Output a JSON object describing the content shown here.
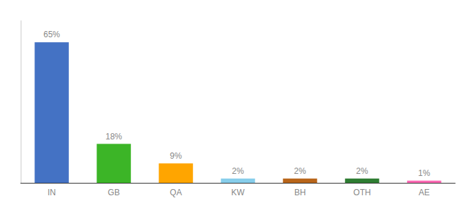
{
  "chart_data": {
    "type": "bar",
    "categories": [
      "IN",
      "GB",
      "QA",
      "KW",
      "BH",
      "OTH",
      "AE"
    ],
    "values": [
      65,
      18,
      9,
      2,
      2,
      2,
      1
    ],
    "value_labels": [
      "65%",
      "18%",
      "9%",
      "2%",
      "2%",
      "2%",
      "1%"
    ],
    "colors": [
      "#4472C4",
      "#3CB527",
      "#FFA500",
      "#87CEEB",
      "#B8651A",
      "#2E7D32",
      "#FF69B4"
    ],
    "ylim": [
      0,
      75
    ],
    "grid": false,
    "data_labels": true,
    "tick_labels": "x"
  }
}
